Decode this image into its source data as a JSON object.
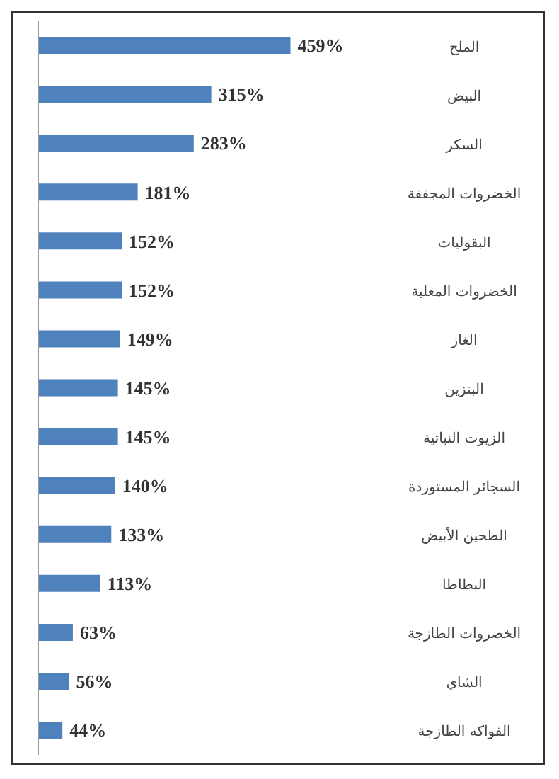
{
  "chart_data": {
    "type": "bar",
    "orientation": "horizontal",
    "categories": [
      "الملح",
      "البيض",
      "السكر",
      "الخضروات المجففة",
      "البقوليات",
      "الخضروات المعلبة",
      "الغاز",
      "البنزين",
      "الزيوت النباتية",
      "السجائر المستوردة",
      "الطحين الأبيض",
      "البطاطا",
      "الخضروات الطازجة",
      "الشاي",
      "الفواكه الطازجة"
    ],
    "values": [
      459,
      315,
      283,
      181,
      152,
      152,
      149,
      145,
      145,
      140,
      133,
      113,
      63,
      56,
      44
    ],
    "value_labels": [
      "459%",
      "315%",
      "283%",
      "181%",
      "152%",
      "152%",
      "149%",
      "145%",
      "145%",
      "140%",
      "133%",
      "113%",
      "63%",
      "56%",
      "44%"
    ],
    "color": "#4f81bd",
    "tick_labels": "y"
  }
}
